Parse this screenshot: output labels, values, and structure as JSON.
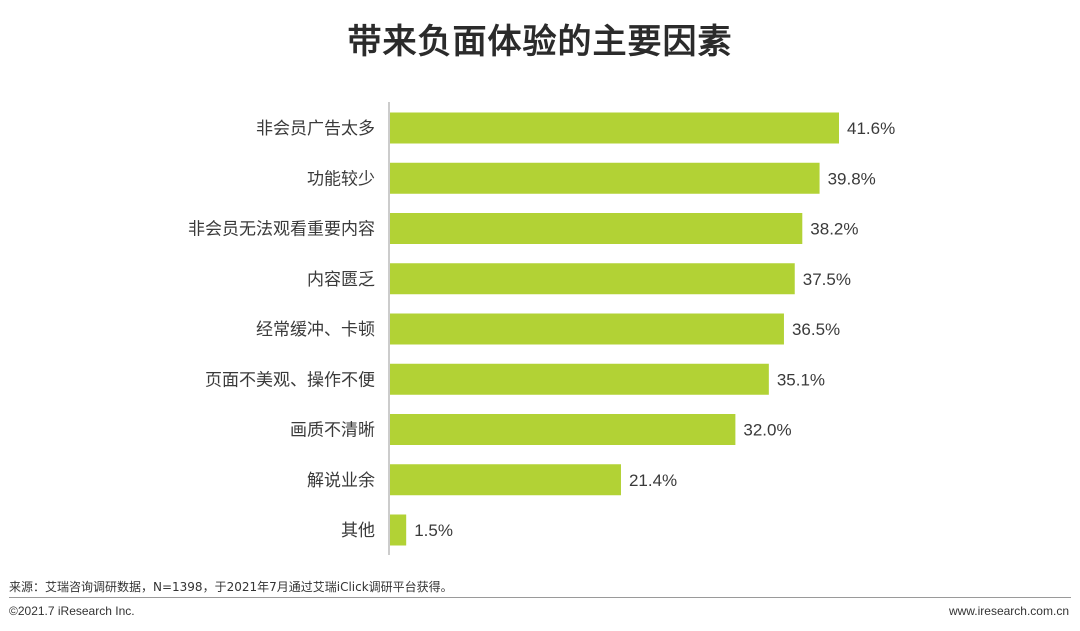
{
  "title": "带来负面体验的主要因素",
  "chart_data": {
    "type": "bar",
    "orientation": "horizontal",
    "categories": [
      "非会员广告太多",
      "功能较少",
      "非会员无法观看重要内容",
      "内容匮乏",
      "经常缓冲、卡顿",
      "页面不美观、操作不便",
      "画质不清晰",
      "解说业余",
      "其他"
    ],
    "values": [
      41.6,
      39.8,
      38.2,
      37.5,
      36.5,
      35.1,
      32.0,
      21.4,
      1.5
    ],
    "value_labels": [
      "41.6%",
      "39.8%",
      "38.2%",
      "37.5%",
      "36.5%",
      "35.1%",
      "32.0%",
      "21.4%",
      "1.5%"
    ],
    "xlim": [
      0,
      41.6
    ],
    "grid": false,
    "bar_color": "#b2d235"
  },
  "source": "来源：艾瑞咨询调研数据，N=1398，于2021年7月通过艾瑞iClick调研平台获得。",
  "copyright": "©2021.7 iResearch Inc.",
  "website": "www.iresearch.com.cn"
}
